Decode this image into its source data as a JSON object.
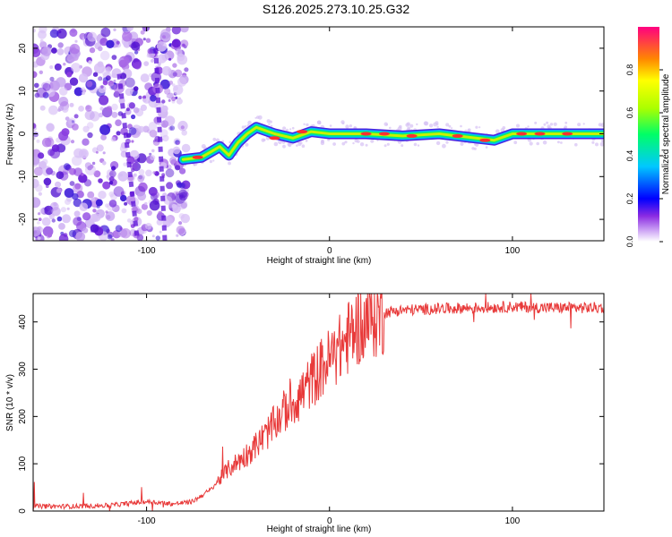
{
  "title": "S126.2025.273.10.25.G32",
  "chart_data": [
    {
      "type": "heatmap",
      "xlabel": "Height of straight line (km)",
      "ylabel": "Frequency (Hz)",
      "xlim": [
        -162,
        150
      ],
      "ylim": [
        -25,
        25
      ],
      "xticks": [
        -100,
        0,
        100
      ],
      "xtick_labels": [
        "-100",
        "0",
        "100"
      ],
      "yticks": [
        -20,
        -10,
        0,
        10,
        20
      ],
      "ytick_labels": [
        "-20",
        "-10",
        "0",
        "10",
        "20"
      ],
      "colorbar": {
        "label": "Normalized spectral amplitude",
        "range": [
          0,
          1
        ],
        "ticks": [
          0.0,
          0.2,
          0.4,
          0.6,
          0.8
        ],
        "tick_labels": [
          "0.0",
          "0.2",
          "0.4",
          "0.6",
          "0.8"
        ]
      },
      "ridge": {
        "x": [
          -80,
          -70,
          -60,
          -55,
          -50,
          -45,
          -40,
          -30,
          -20,
          -10,
          0,
          20,
          40,
          60,
          70,
          80,
          90,
          100,
          120,
          150
        ],
        "freq": [
          -6,
          -5.5,
          -3,
          -5,
          -2,
          0,
          1.5,
          0,
          -1,
          0.5,
          0,
          0,
          -0.5,
          0,
          -0.5,
          -1,
          -1.5,
          0,
          0,
          0
        ]
      }
    },
    {
      "type": "line",
      "xlabel": "Height of straight line (km)",
      "ylabel": "SNR (10 * v/v)",
      "xlim": [
        -162,
        150
      ],
      "ylim": [
        0,
        460
      ],
      "xticks": [
        -100,
        0,
        100
      ],
      "xtick_labels": [
        "-100",
        "0",
        "100"
      ],
      "yticks": [
        0,
        100,
        200,
        300,
        400
      ],
      "ytick_labels": [
        "0",
        "100",
        "200",
        "300",
        "400"
      ],
      "series": [
        {
          "name": "SNR",
          "color": "#e83a3a",
          "x": [
            -162,
            -140,
            -120,
            -100,
            -85,
            -75,
            -65,
            -55,
            -45,
            -35,
            -25,
            -15,
            -5,
            5,
            15,
            25,
            30,
            40,
            60,
            80,
            100,
            120,
            150
          ],
          "y": [
            10,
            10,
            12,
            20,
            15,
            20,
            45,
            90,
            120,
            160,
            210,
            250,
            300,
            340,
            390,
            410,
            420,
            425,
            428,
            430,
            432,
            430,
            430
          ]
        }
      ]
    }
  ]
}
